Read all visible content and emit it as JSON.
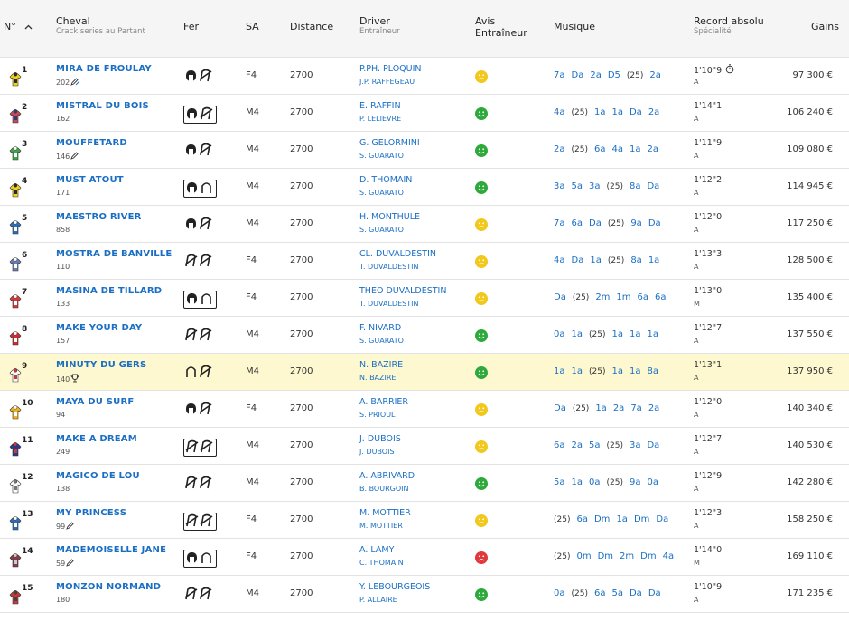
{
  "header": {
    "num": "N°",
    "cheval": "Cheval",
    "cheval_sub": "Crack series au Partant",
    "fer": "Fer",
    "sa": "SA",
    "distance": "Distance",
    "driver": "Driver",
    "driver_sub": "Entraîneur",
    "avis_line1": "Avis",
    "avis_line2": "Entraîneur",
    "musique": "Musique",
    "record": "Record absolu",
    "record_sub": "Spécialité",
    "gains": "Gains"
  },
  "colors": {
    "link": "#1a6fc4",
    "highlight_row": "#fdf8cf",
    "avis_yellow": "#f2c81d",
    "avis_green": "#2eaa3c",
    "avis_red": "#e0383b"
  },
  "rows": [
    {
      "num": "1",
      "name": "MIRA DE FROULAY",
      "sub": "202",
      "sub_icon": "crack-badge-icon",
      "fer": "F1",
      "boxed": false,
      "sa": "F4",
      "dist": "2700",
      "driver": "P.PH. PLOQUIN",
      "trainer": "J.P. RAFFEGEAU",
      "avis": "yellow",
      "musique": [
        "7a",
        "Da",
        "2a",
        "D5",
        "(25)",
        "2a"
      ],
      "record": "1'10\"9",
      "record_icon": "stopwatch-icon",
      "spec": "A",
      "gains": "97 300 €",
      "silk": [
        "#f3d21a",
        "#2a2a2a"
      ],
      "hl": false
    },
    {
      "num": "2",
      "name": "MISTRAL DU BOIS",
      "sub": "162",
      "sub_icon": "",
      "fer": "F1",
      "boxed": true,
      "sa": "M4",
      "dist": "2700",
      "driver": "E. RAFFIN",
      "trainer": "P. LELIEVRE",
      "avis": "green",
      "musique": [
        "4a",
        "(25)",
        "1a",
        "1a",
        "Da",
        "2a"
      ],
      "record": "1'14\"1",
      "record_icon": "",
      "spec": "A",
      "gains": "106 240 €",
      "silk": [
        "#c94a5a",
        "#2c3e7a"
      ],
      "hl": false
    },
    {
      "num": "3",
      "name": "MOUFFETARD",
      "sub": "146",
      "sub_icon": "pencil-icon",
      "fer": "F1",
      "boxed": false,
      "sa": "M4",
      "dist": "2700",
      "driver": "G. GELORMINI",
      "trainer": "S. GUARATO",
      "avis": "green",
      "musique": [
        "2a",
        "(25)",
        "6a",
        "4a",
        "1a",
        "2a"
      ],
      "record": "1'11\"9",
      "record_icon": "",
      "spec": "A",
      "gains": "109 080 €",
      "silk": [
        "#3fa64a",
        "#ffffff"
      ],
      "hl": false
    },
    {
      "num": "4",
      "name": "MUST ATOUT",
      "sub": "171",
      "sub_icon": "",
      "fer": "F2",
      "boxed": true,
      "sa": "M4",
      "dist": "2700",
      "driver": "D. THOMAIN",
      "trainer": "S. GUARATO",
      "avis": "green",
      "musique": [
        "3a",
        "5a",
        "3a",
        "(25)",
        "8a",
        "Da"
      ],
      "record": "1'12\"2",
      "record_icon": "",
      "spec": "A",
      "gains": "114 945 €",
      "silk": [
        "#f3d21a",
        "#2a2a2a"
      ],
      "hl": false
    },
    {
      "num": "5",
      "name": "MAESTRO RIVER",
      "sub": "858",
      "sub_icon": "",
      "fer": "F1",
      "boxed": false,
      "sa": "M4",
      "dist": "2700",
      "driver": "H. MONTHULE",
      "trainer": "S. GUARATO",
      "avis": "yellow",
      "musique": [
        "7a",
        "6a",
        "Da",
        "(25)",
        "9a",
        "Da"
      ],
      "record": "1'12\"0",
      "record_icon": "",
      "spec": "A",
      "gains": "117 250 €",
      "silk": [
        "#2f6fb8",
        "#ffffff"
      ],
      "hl": false
    },
    {
      "num": "6",
      "name": "MOSTRA DE BANVILLE",
      "sub": "110",
      "sub_icon": "",
      "fer": "F3",
      "boxed": false,
      "sa": "F4",
      "dist": "2700",
      "driver": "CL. DUVALDESTIN",
      "trainer": "T. DUVALDESTIN",
      "avis": "yellow",
      "musique": [
        "4a",
        "Da",
        "1a",
        "(25)",
        "8a",
        "1a"
      ],
      "record": "1'13\"3",
      "record_icon": "",
      "spec": "A",
      "gains": "128 500 €",
      "silk": [
        "#6a7fb8",
        "#ffffff"
      ],
      "hl": false
    },
    {
      "num": "7",
      "name": "MASINA DE TILLARD",
      "sub": "133",
      "sub_icon": "",
      "fer": "F2",
      "boxed": true,
      "sa": "F4",
      "dist": "2700",
      "driver": "THEO DUVALDESTIN",
      "trainer": "T. DUVALDESTIN",
      "avis": "yellow",
      "musique": [
        "Da",
        "(25)",
        "2m",
        "1m",
        "6a",
        "6a"
      ],
      "record": "1'13\"0",
      "record_icon": "",
      "spec": "M",
      "gains": "135 400 €",
      "silk": [
        "#d83a3a",
        "#ffffff"
      ],
      "hl": false
    },
    {
      "num": "8",
      "name": "MAKE YOUR DAY",
      "sub": "157",
      "sub_icon": "",
      "fer": "F3",
      "boxed": false,
      "sa": "M4",
      "dist": "2700",
      "driver": "F. NIVARD",
      "trainer": "S. GUARATO",
      "avis": "green",
      "musique": [
        "0a",
        "1a",
        "(25)",
        "1a",
        "1a",
        "1a"
      ],
      "record": "1'12\"7",
      "record_icon": "",
      "spec": "A",
      "gains": "137 550 €",
      "silk": [
        "#d82a2a",
        "#ffffff"
      ],
      "hl": false
    },
    {
      "num": "9",
      "name": "MINUTY DU GERS",
      "sub": "140",
      "sub_icon": "trophy-icon",
      "fer": "F4",
      "boxed": false,
      "sa": "M4",
      "dist": "2700",
      "driver": "N. BAZIRE",
      "trainer": "N. BAZIRE",
      "avis": "green",
      "musique": [
        "1a",
        "1a",
        "(25)",
        "1a",
        "1a",
        "8a"
      ],
      "record": "1'13\"1",
      "record_icon": "",
      "spec": "A",
      "gains": "137 950 €",
      "silk": [
        "#ffffff",
        "#c83a3a"
      ],
      "hl": true
    },
    {
      "num": "10",
      "name": "MAYA DU SURF",
      "sub": "94",
      "sub_icon": "",
      "fer": "F1",
      "boxed": false,
      "sa": "F4",
      "dist": "2700",
      "driver": "A. BARRIER",
      "trainer": "S. PRIOUL",
      "avis": "yellow",
      "musique": [
        "Da",
        "(25)",
        "1a",
        "2a",
        "7a",
        "2a"
      ],
      "record": "1'12\"0",
      "record_icon": "",
      "spec": "A",
      "gains": "140 340 €",
      "silk": [
        "#f3b51a",
        "#ffffff"
      ],
      "hl": false
    },
    {
      "num": "11",
      "name": "MAKE A DREAM",
      "sub": "249",
      "sub_icon": "",
      "fer": "F3",
      "boxed": true,
      "sa": "M4",
      "dist": "2700",
      "driver": "J. DUBOIS",
      "trainer": "J. DUBOIS",
      "avis": "yellow",
      "musique": [
        "6a",
        "2a",
        "5a",
        "(25)",
        "3a",
        "Da"
      ],
      "record": "1'12\"7",
      "record_icon": "",
      "spec": "A",
      "gains": "140 530 €",
      "silk": [
        "#2a3a8a",
        "#c83a3a"
      ],
      "hl": false
    },
    {
      "num": "12",
      "name": "MAGICO DE LOU",
      "sub": "138",
      "sub_icon": "",
      "fer": "F3",
      "boxed": false,
      "sa": "M4",
      "dist": "2700",
      "driver": "A. ABRIVARD",
      "trainer": "B. BOURGOIN",
      "avis": "green",
      "musique": [
        "5a",
        "1a",
        "0a",
        "(25)",
        "9a",
        "0a"
      ],
      "record": "1'12\"9",
      "record_icon": "",
      "spec": "A",
      "gains": "142 280 €",
      "silk": [
        "#ffffff",
        "#777777"
      ],
      "hl": false
    },
    {
      "num": "13",
      "name": "MY PRINCESS",
      "sub": "99",
      "sub_icon": "pencil-icon",
      "fer": "F3",
      "boxed": true,
      "sa": "F4",
      "dist": "2700",
      "driver": "M. MOTTIER",
      "trainer": "M. MOTTIER",
      "avis": "yellow",
      "musique": [
        "(25)",
        "6a",
        "Dm",
        "1a",
        "Dm",
        "Da"
      ],
      "record": "1'12\"3",
      "record_icon": "",
      "spec": "A",
      "gains": "158 250 €",
      "silk": [
        "#2f6fb8",
        "#ffffff"
      ],
      "hl": false
    },
    {
      "num": "14",
      "name": "MADEMOISELLE JANE",
      "sub": "59",
      "sub_icon": "pencil-icon",
      "fer": "F2",
      "boxed": true,
      "sa": "F4",
      "dist": "2700",
      "driver": "A. LAMY",
      "trainer": "C. THOMAIN",
      "avis": "red",
      "musique": [
        "(25)",
        "0m",
        "Dm",
        "2m",
        "Dm",
        "4a"
      ],
      "record": "1'14\"0",
      "record_icon": "",
      "spec": "M",
      "gains": "169 110 €",
      "silk": [
        "#8a3a4a",
        "#cccccc"
      ],
      "hl": false
    },
    {
      "num": "15",
      "name": "MONZON NORMAND",
      "sub": "180",
      "sub_icon": "",
      "fer": "F3",
      "boxed": false,
      "sa": "M4",
      "dist": "2700",
      "driver": "Y. LEBOURGEOIS",
      "trainer": "P. ALLAIRE",
      "avis": "green",
      "musique": [
        "0a",
        "(25)",
        "6a",
        "5a",
        "Da",
        "Da"
      ],
      "record": "1'10\"9",
      "record_icon": "",
      "spec": "A",
      "gains": "171 235 €",
      "silk": [
        "#c83a3a",
        "#444444"
      ],
      "hl": false
    }
  ]
}
